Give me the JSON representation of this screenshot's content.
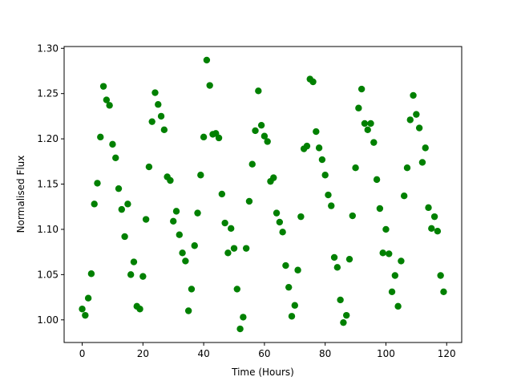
{
  "chart_data": {
    "type": "scatter",
    "x_label": "Time (Hours)",
    "y_label": "Normalised Flux",
    "color": "#008000",
    "x": [
      0,
      1,
      2,
      3,
      4,
      5,
      6,
      7,
      8,
      9,
      10,
      11,
      12,
      13,
      14,
      15,
      16,
      17,
      18,
      19,
      20,
      21,
      22,
      23,
      24,
      25,
      26,
      27,
      28,
      29,
      30,
      31,
      32,
      33,
      34,
      35,
      36,
      37,
      38,
      39,
      40,
      41,
      42,
      43,
      44,
      45,
      46,
      47,
      48,
      49,
      50,
      51,
      52,
      53,
      54,
      55,
      56,
      57,
      58,
      59,
      60,
      61,
      62,
      63,
      64,
      65,
      66,
      67,
      68,
      69,
      70,
      71,
      72,
      73,
      74,
      75,
      76,
      77,
      78,
      79,
      80,
      81,
      82,
      83,
      84,
      85,
      86,
      87,
      88,
      89,
      90,
      91,
      92,
      93,
      94,
      95,
      96,
      97,
      98,
      99,
      100,
      101,
      102,
      103,
      104,
      105,
      106,
      107,
      108,
      109,
      110,
      111,
      112,
      113,
      114,
      115,
      116,
      117,
      118,
      119
    ],
    "values": [
      1.012,
      1.005,
      1.024,
      1.051,
      1.128,
      1.151,
      1.202,
      1.258,
      1.243,
      1.237,
      1.194,
      1.179,
      1.145,
      1.122,
      1.092,
      1.128,
      1.05,
      1.064,
      1.015,
      1.012,
      1.048,
      1.111,
      1.169,
      1.219,
      1.251,
      1.238,
      1.225,
      1.21,
      1.158,
      1.154,
      1.109,
      1.12,
      1.094,
      1.074,
      1.065,
      1.01,
      1.034,
      1.082,
      1.118,
      1.16,
      1.202,
      1.287,
      1.259,
      1.205,
      1.206,
      1.201,
      1.139,
      1.107,
      1.074,
      1.101,
      1.079,
      1.034,
      0.99,
      1.003,
      1.079,
      1.131,
      1.172,
      1.209,
      1.253,
      1.215,
      1.203,
      1.197,
      1.153,
      1.157,
      1.118,
      1.108,
      1.097,
      1.06,
      1.036,
      1.004,
      1.016,
      1.055,
      1.114,
      1.189,
      1.192,
      1.266,
      1.263,
      1.208,
      1.19,
      1.177,
      1.16,
      1.138,
      1.126,
      1.069,
      1.058,
      1.022,
      0.997,
      1.005,
      1.067,
      1.115,
      1.168,
      1.234,
      1.255,
      1.217,
      1.21,
      1.217,
      1.196,
      1.155,
      1.123,
      1.074,
      1.1,
      1.073,
      1.031,
      1.049,
      1.015,
      1.065,
      1.137,
      1.168,
      1.221,
      1.248,
      1.227,
      1.212,
      1.174,
      1.19,
      1.124,
      1.101,
      1.114,
      1.098,
      1.049,
      1.031
    ],
    "xlim": [
      -5.95,
      124.95
    ],
    "ylim": [
      0.975,
      1.302
    ],
    "xticks": [
      0,
      20,
      40,
      60,
      80,
      100,
      120
    ],
    "yticks": [
      {
        "value": 1.0,
        "label": "1.00"
      },
      {
        "value": 1.05,
        "label": "1.05"
      },
      {
        "value": 1.1,
        "label": "1.10"
      },
      {
        "value": 1.15,
        "label": "1.15"
      },
      {
        "value": 1.2,
        "label": "1.20"
      },
      {
        "value": 1.25,
        "label": "1.25"
      },
      {
        "value": 1.3,
        "label": "1.30"
      }
    ]
  }
}
